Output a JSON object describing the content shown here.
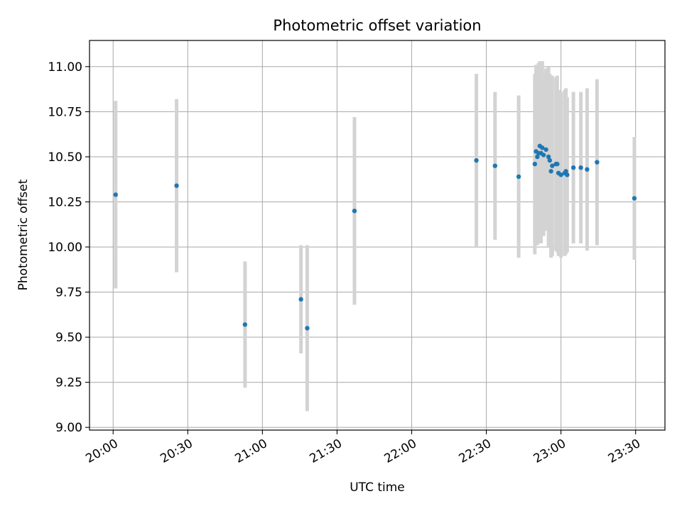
{
  "chart_data": {
    "type": "scatter",
    "title": "Photometric offset variation",
    "xlabel": "UTC time",
    "ylabel": "Photometric offset",
    "x_ticks": [
      "20:00",
      "20:30",
      "21:00",
      "21:30",
      "22:00",
      "22:30",
      "23:00",
      "23:30"
    ],
    "x_tick_minutes": [
      1200,
      1230,
      1260,
      1290,
      1320,
      1350,
      1380,
      1410
    ],
    "xlim_minutes": [
      1190.5,
      1421.8
    ],
    "y_ticks": [
      "9.00",
      "9.25",
      "9.50",
      "9.75",
      "10.00",
      "10.25",
      "10.50",
      "10.75",
      "11.00"
    ],
    "y_tick_values": [
      9.0,
      9.25,
      9.5,
      9.75,
      10.0,
      10.25,
      10.5,
      10.75,
      11.0
    ],
    "ylim": [
      8.985,
      11.145
    ],
    "grid": true,
    "colors": {
      "points": "#1f77b4",
      "errorbars": "#d3d3d3",
      "grid": "#b0b0b0"
    },
    "points": [
      {
        "t": 1201.0,
        "y": 10.29,
        "err": 0.52
      },
      {
        "t": 1225.5,
        "y": 10.34,
        "err": 0.48
      },
      {
        "t": 1253.0,
        "y": 9.57,
        "err": 0.35
      },
      {
        "t": 1275.5,
        "y": 9.71,
        "err": 0.3
      },
      {
        "t": 1278.0,
        "y": 9.55,
        "err": 0.46
      },
      {
        "t": 1297.0,
        "y": 10.2,
        "err": 0.52
      },
      {
        "t": 1346.0,
        "y": 10.48,
        "err": 0.48
      },
      {
        "t": 1353.5,
        "y": 10.45,
        "err": 0.41
      },
      {
        "t": 1363.0,
        "y": 10.39,
        "err": 0.45
      },
      {
        "t": 1369.5,
        "y": 10.46,
        "err": 0.5
      },
      {
        "t": 1370.0,
        "y": 10.53,
        "err": 0.48
      },
      {
        "t": 1370.5,
        "y": 10.5,
        "err": 0.49
      },
      {
        "t": 1371.0,
        "y": 10.52,
        "err": 0.5
      },
      {
        "t": 1371.5,
        "y": 10.56,
        "err": 0.47
      },
      {
        "t": 1372.0,
        "y": 10.52,
        "err": 0.5
      },
      {
        "t": 1372.5,
        "y": 10.55,
        "err": 0.48
      },
      {
        "t": 1373.0,
        "y": 10.51,
        "err": 0.45
      },
      {
        "t": 1374.0,
        "y": 10.54,
        "err": 0.45
      },
      {
        "t": 1375.0,
        "y": 10.5,
        "err": 0.5
      },
      {
        "t": 1375.5,
        "y": 10.48,
        "err": 0.48
      },
      {
        "t": 1376.0,
        "y": 10.42,
        "err": 0.48
      },
      {
        "t": 1376.5,
        "y": 10.45,
        "err": 0.5
      },
      {
        "t": 1378.0,
        "y": 10.46,
        "err": 0.48
      },
      {
        "t": 1378.5,
        "y": 10.46,
        "err": 0.49
      },
      {
        "t": 1379.0,
        "y": 10.41,
        "err": 0.46
      },
      {
        "t": 1380.0,
        "y": 10.4,
        "err": 0.46
      },
      {
        "t": 1381.5,
        "y": 10.41,
        "err": 0.46
      },
      {
        "t": 1382.0,
        "y": 10.42,
        "err": 0.46
      },
      {
        "t": 1382.5,
        "y": 10.4,
        "err": 0.43
      },
      {
        "t": 1385.0,
        "y": 10.44,
        "err": 0.42
      },
      {
        "t": 1388.0,
        "y": 10.44,
        "err": 0.42
      },
      {
        "t": 1390.5,
        "y": 10.43,
        "err": 0.45
      },
      {
        "t": 1394.5,
        "y": 10.47,
        "err": 0.46
      },
      {
        "t": 1409.5,
        "y": 10.27,
        "err": 0.34
      }
    ]
  }
}
